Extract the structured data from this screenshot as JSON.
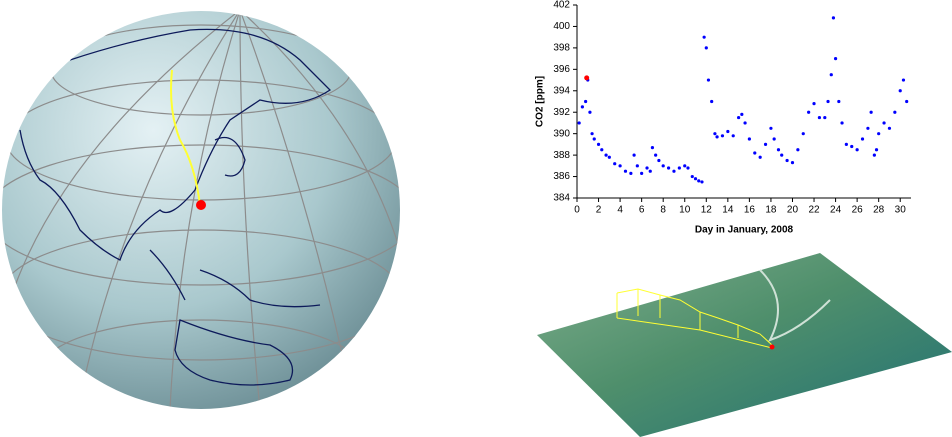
{
  "chart_data": {
    "type": "scatter",
    "xlabel": "Day in January, 2008",
    "ylabel": "CO2 [ppm]",
    "xlim": [
      0,
      31
    ],
    "ylim": [
      384,
      402
    ],
    "xticks": [
      0,
      2,
      4,
      6,
      8,
      10,
      12,
      14,
      16,
      18,
      20,
      22,
      24,
      26,
      28,
      30
    ],
    "yticks": [
      384,
      386,
      388,
      390,
      392,
      394,
      396,
      398,
      400,
      402
    ],
    "series": [
      {
        "color": "#0000ff",
        "x": [
          0.2,
          0.5,
          0.8,
          1.0,
          1.2,
          1.4,
          1.6,
          2.0,
          2.3,
          2.7,
          3.0,
          3.5,
          4.0,
          4.5,
          5.0,
          5.3,
          5.6,
          6.0,
          6.5,
          6.8,
          7.0,
          7.3,
          7.6,
          8.0,
          8.5,
          9.0,
          9.5,
          10.0,
          10.3,
          10.7,
          11.0,
          11.3,
          11.6,
          11.8,
          12.0,
          12.2,
          12.5,
          12.8,
          13.0,
          13.5,
          14.0,
          14.5,
          15.0,
          15.3,
          15.6,
          16.0,
          16.5,
          17.0,
          17.5,
          18.0,
          18.3,
          18.7,
          19.0,
          19.5,
          20.0,
          20.5,
          21.0,
          21.5,
          22.0,
          22.5,
          23.0,
          23.3,
          23.6,
          23.8,
          24.0,
          24.3,
          24.6,
          25.0,
          25.5,
          26.0,
          26.5,
          27.0,
          27.3,
          27.6,
          27.8,
          28.0,
          28.5,
          29.0,
          29.5,
          30.0,
          30.3,
          30.6
        ],
        "values": [
          391,
          392.5,
          393,
          395,
          392,
          390,
          389.5,
          389,
          388.5,
          388,
          387.8,
          387.2,
          387,
          386.5,
          386.3,
          388,
          387,
          386.3,
          386.8,
          386.5,
          388.7,
          388,
          387.5,
          387,
          386.8,
          386.5,
          386.8,
          387,
          386.8,
          386,
          385.8,
          385.6,
          385.5,
          399,
          398,
          395,
          393,
          390,
          389.7,
          389.8,
          390.2,
          389.8,
          391.5,
          391.8,
          391,
          389.5,
          388.2,
          387.8,
          389,
          390.5,
          389.5,
          388.5,
          388,
          387.5,
          387.3,
          388.5,
          390,
          392,
          392.8,
          391.5,
          391.5,
          393,
          395.5,
          400.8,
          397,
          393,
          391,
          389,
          388.8,
          388.5,
          389.5,
          390.5,
          392,
          388,
          388.5,
          390,
          391,
          390.5,
          392,
          394,
          395,
          393
        ]
      },
      {
        "color": "#ff0000",
        "x": [
          0.9
        ],
        "values": [
          395.2
        ]
      }
    ]
  }
}
